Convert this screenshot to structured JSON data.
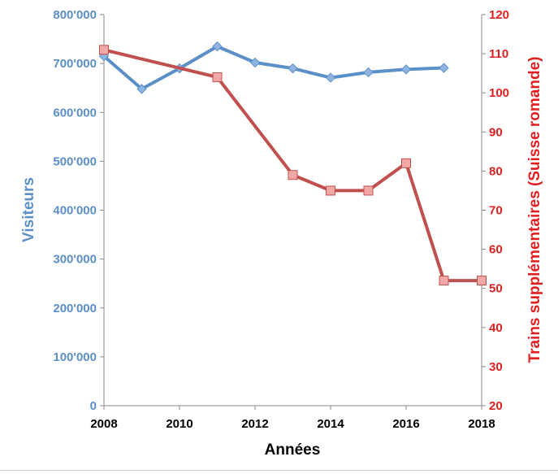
{
  "chart_data": {
    "type": "line",
    "xlabel": "Années",
    "x_ticks": [
      "2008",
      "2010",
      "2012",
      "2014",
      "2016",
      "2018"
    ],
    "xlim": [
      2008,
      2018
    ],
    "y_left": {
      "label": "Visiteurs",
      "lim": [
        0,
        800000
      ],
      "ticks": [
        "0",
        "100'000",
        "200'000",
        "300'000",
        "400'000",
        "500'000",
        "600'000",
        "700'000",
        "800'000"
      ],
      "tick_values": [
        0,
        100000,
        200000,
        300000,
        400000,
        500000,
        600000,
        700000,
        800000
      ]
    },
    "y_right": {
      "label": "Trains supplémentaires (Suisse romande)",
      "lim": [
        20,
        120
      ],
      "ticks": [
        "20",
        "30",
        "40",
        "50",
        "60",
        "70",
        "80",
        "90",
        "100",
        "110",
        "120"
      ],
      "tick_values": [
        20,
        30,
        40,
        50,
        60,
        70,
        80,
        90,
        100,
        110,
        120
      ]
    },
    "grid": false,
    "series": [
      {
        "axis": "left",
        "color": "#5b8fc7",
        "marker": "diamond",
        "x": [
          2008,
          2009,
          2010,
          2011,
          2012,
          2013,
          2014,
          2015,
          2016,
          2017
        ],
        "values": [
          715000,
          648000,
          690000,
          735000,
          702000,
          690000,
          671000,
          682000,
          688000,
          691000
        ]
      },
      {
        "axis": "right",
        "color": "#c0504d",
        "marker": "square",
        "x": [
          2008,
          2011,
          2013,
          2014,
          2015,
          2016,
          2017,
          2018
        ],
        "values": [
          111,
          104,
          79,
          75,
          75,
          82,
          52,
          52
        ]
      }
    ]
  }
}
